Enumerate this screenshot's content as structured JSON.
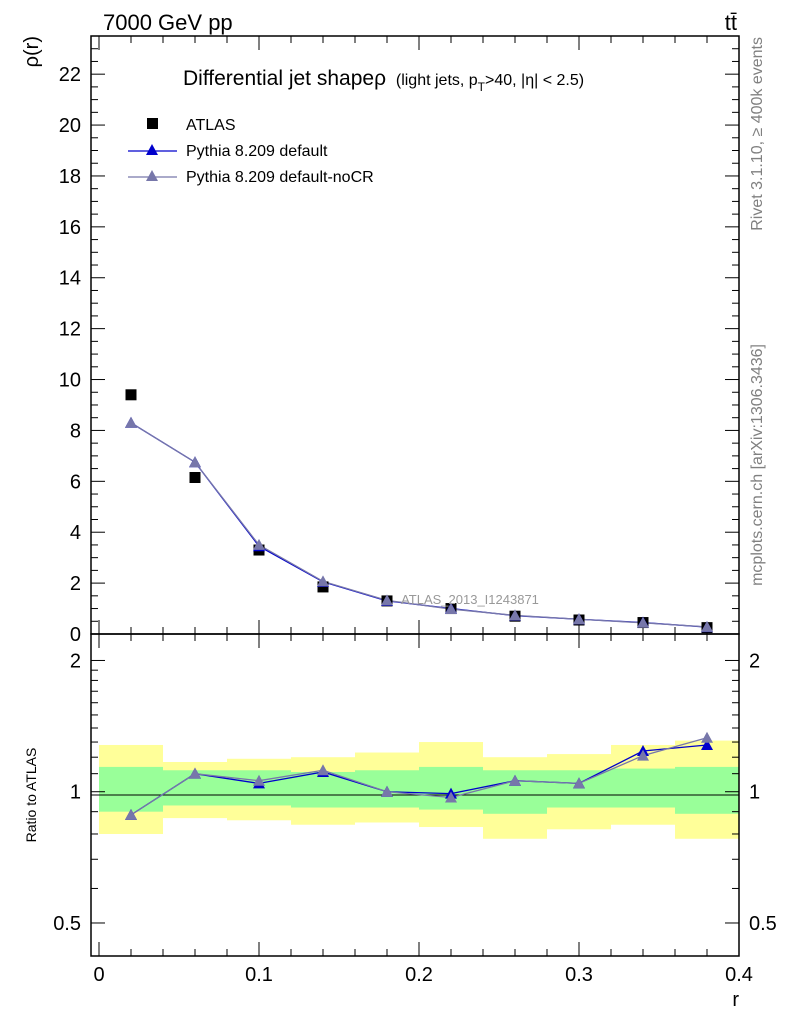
{
  "header": {
    "left": "7000 GeV pp",
    "right": "tt̄"
  },
  "side_labels": {
    "rivet": "Rivet 3.1.10, ≥ 400k events",
    "mcplots": "mcplots.cern.ch [arXiv:1306.3436]"
  },
  "chart_data": [
    {
      "type": "scatter",
      "panel": "main",
      "title": "Differential jet shape",
      "title_rho": "ρ",
      "title_suffix_1": "(light jets, p",
      "title_sub": "T",
      "title_suffix_2": ">40, |η| < 2.5)",
      "ylabel": "ρ(r)",
      "xlabel": "r",
      "xlim": [
        -0.005,
        0.4
      ],
      "ylim": [
        0,
        23.5
      ],
      "yticks": [
        0,
        2,
        4,
        6,
        8,
        10,
        12,
        14,
        16,
        18,
        20,
        22
      ],
      "xticks": [
        0,
        0.1,
        0.2,
        0.3,
        0.4
      ],
      "watermark": "ATLAS_2013_I1243871",
      "legend_position": "top-left",
      "x": [
        0.02,
        0.06,
        0.1,
        0.14,
        0.18,
        0.22,
        0.26,
        0.3,
        0.34,
        0.38
      ],
      "series": [
        {
          "name": "ATLAS",
          "marker": "square",
          "color": "#000000",
          "values": [
            9.4,
            6.15,
            3.3,
            1.85,
            1.3,
            1.0,
            0.7,
            0.55,
            0.45,
            0.25
          ]
        },
        {
          "name": "Pythia 8.209 default",
          "marker": "triangle",
          "color": "#0000cc",
          "values": [
            8.3,
            6.75,
            3.45,
            2.05,
            1.3,
            1.0,
            0.72,
            0.58,
            0.45,
            0.27
          ]
        },
        {
          "name": "Pythia 8.209 default-noCR",
          "marker": "triangle",
          "color": "#7777aa",
          "values": [
            8.3,
            6.75,
            3.5,
            2.07,
            1.32,
            0.98,
            0.73,
            0.58,
            0.44,
            0.28
          ]
        }
      ]
    },
    {
      "type": "line",
      "panel": "ratio",
      "ylabel": "Ratio to ATLAS",
      "xlabel": "r",
      "ylog": true,
      "ylim": [
        0.42,
        2.3
      ],
      "yticks": [
        0.5,
        1,
        2
      ],
      "ytick_labels": [
        "0.5",
        "1",
        "2"
      ],
      "xticks": [
        0,
        0.1,
        0.2,
        0.3,
        0.4
      ],
      "xtick_labels": [
        "0",
        "0.1",
        "0.2",
        "0.3",
        "0.4"
      ],
      "x": [
        0.02,
        0.06,
        0.1,
        0.14,
        0.18,
        0.22,
        0.26,
        0.3,
        0.34,
        0.38
      ],
      "bin_edges": [
        0.0,
        0.04,
        0.08,
        0.12,
        0.16,
        0.2,
        0.24,
        0.28,
        0.32,
        0.36,
        0.4
      ],
      "band_inner": {
        "color": "#99ff99",
        "low": [
          0.9,
          0.93,
          0.93,
          0.92,
          0.92,
          0.91,
          0.89,
          0.92,
          0.92,
          0.89
        ],
        "high": [
          1.14,
          1.12,
          1.12,
          1.11,
          1.12,
          1.14,
          1.12,
          1.12,
          1.13,
          1.14
        ]
      },
      "band_outer": {
        "color": "#ffff99",
        "low": [
          0.8,
          0.87,
          0.86,
          0.84,
          0.85,
          0.83,
          0.78,
          0.82,
          0.84,
          0.78
        ],
        "high": [
          1.28,
          1.17,
          1.19,
          1.2,
          1.23,
          1.3,
          1.2,
          1.22,
          1.28,
          1.31
        ]
      },
      "series": [
        {
          "name": "Pythia 8.209 default",
          "color": "#0000cc",
          "values": [
            0.885,
            1.1,
            1.045,
            1.11,
            1.0,
            0.99,
            1.06,
            1.045,
            1.24,
            1.28
          ]
        },
        {
          "name": "Pythia 8.209 default-noCR",
          "color": "#7777aa",
          "values": [
            0.885,
            1.1,
            1.06,
            1.12,
            1.0,
            0.97,
            1.06,
            1.045,
            1.21,
            1.33
          ]
        }
      ]
    }
  ]
}
